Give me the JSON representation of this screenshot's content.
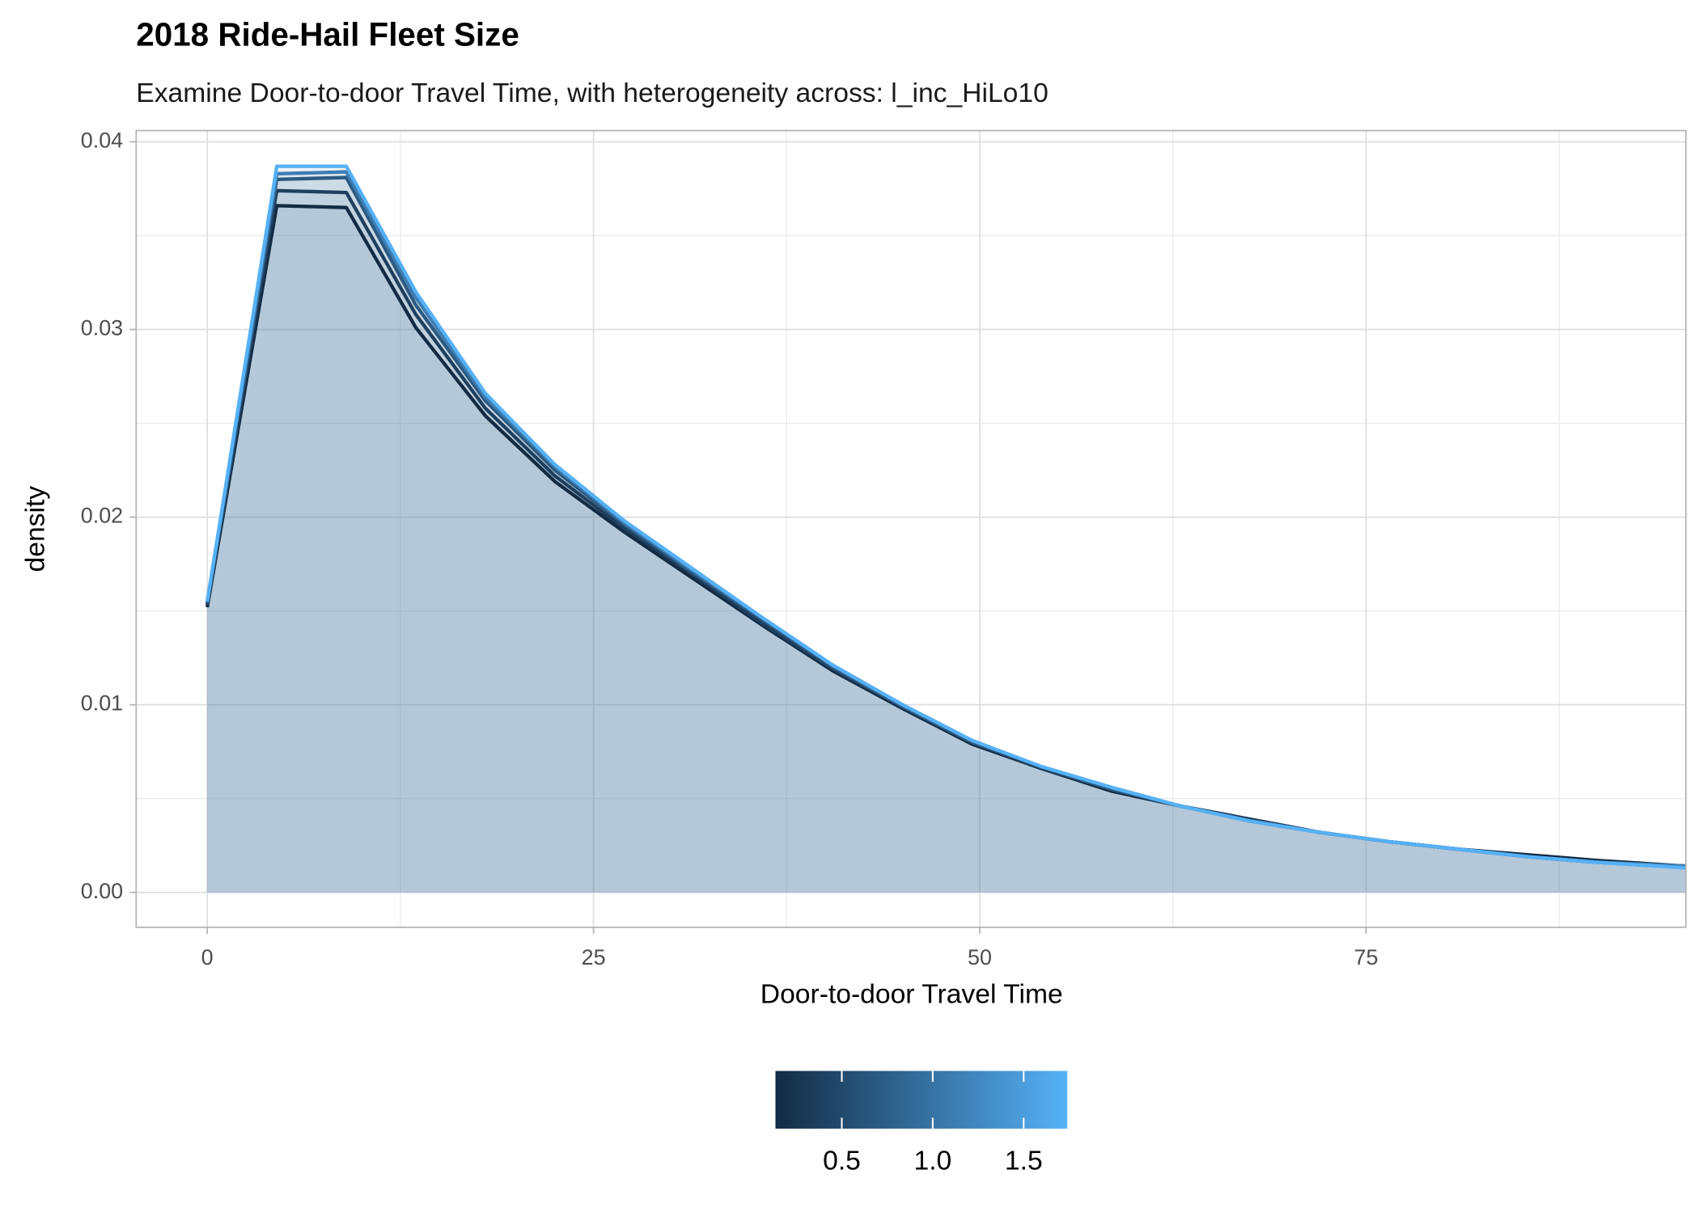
{
  "chart_data": {
    "type": "area_line",
    "title": "2018 Ride-Hail Fleet Size",
    "subtitle": "Examine Door-to-door Travel Time, with heterogeneity across: l_inc_HiLo10",
    "x_label": "Door-to-door Travel Time",
    "y_label": "density",
    "x": [
      0,
      4.5,
      9,
      13.5,
      18,
      22.5,
      27,
      31.5,
      36,
      40.5,
      45,
      49.5,
      54,
      58.5,
      63,
      67.5,
      72,
      76.5,
      81,
      85.5,
      90,
      95.7
    ],
    "series": [
      {
        "color": "#132b43",
        "values": [
          0.0152,
          0.0366,
          0.0365,
          0.0301,
          0.0254,
          0.0219,
          0.0192,
          0.0167,
          0.0142,
          0.0118,
          0.0098,
          0.0079,
          0.0066,
          0.0054,
          0.0046,
          0.0039,
          0.0032,
          0.0027,
          0.0023,
          0.002,
          0.0017,
          0.0014
        ]
      },
      {
        "color": "#1f3f5e",
        "values": [
          0.0153,
          0.0374,
          0.0373,
          0.0308,
          0.0258,
          0.0222,
          0.0194,
          0.0169,
          0.0143,
          0.0119,
          0.0099,
          0.008,
          0.0066,
          0.0055,
          0.0046,
          0.0039,
          0.0032,
          0.0027,
          0.0023,
          0.0019,
          0.0016,
          0.0014
        ]
      },
      {
        "color": "#2c5a82",
        "values": [
          0.0154,
          0.038,
          0.0381,
          0.0313,
          0.0262,
          0.0225,
          0.0196,
          0.017,
          0.0145,
          0.012,
          0.0099,
          0.008,
          0.0067,
          0.0055,
          0.0046,
          0.0038,
          0.0032,
          0.0027,
          0.0023,
          0.0019,
          0.0016,
          0.0014
        ]
      },
      {
        "color": "#3d7db2",
        "values": [
          0.0155,
          0.0383,
          0.0384,
          0.0317,
          0.0264,
          0.0227,
          0.0197,
          0.0171,
          0.0146,
          0.0121,
          0.01,
          0.0081,
          0.0067,
          0.0056,
          0.0046,
          0.0038,
          0.0032,
          0.0027,
          0.0023,
          0.0019,
          0.0016,
          0.0014
        ]
      },
      {
        "color": "#56b1f7",
        "values": [
          0.0155,
          0.0387,
          0.0387,
          0.032,
          0.0266,
          0.0228,
          0.0198,
          0.0172,
          0.0146,
          0.0121,
          0.01,
          0.0081,
          0.0067,
          0.0056,
          0.0046,
          0.0038,
          0.0032,
          0.0027,
          0.0023,
          0.0019,
          0.0016,
          0.0013
        ]
      }
    ],
    "fill": "#4f7fab",
    "xlim": [
      -4.6,
      95.7
    ],
    "ylim": [
      -0.00186,
      0.0406
    ],
    "xticks": [
      0,
      25,
      50,
      75
    ],
    "yticks": [
      {
        "value": 0,
        "label": "0.00"
      },
      {
        "value": 0.01,
        "label": "0.01"
      },
      {
        "value": 0.02,
        "label": "0.02"
      },
      {
        "value": 0.03,
        "label": "0.03"
      },
      {
        "value": 0.04,
        "label": "0.04"
      }
    ],
    "grid": true,
    "minor_grid": true,
    "legend": {
      "position": "bottom",
      "lim": [
        0.135,
        1.74
      ],
      "ticks": [
        0.5,
        {
          "value": 1.0,
          "label": "1.0"
        },
        1.5
      ],
      "colors": [
        "#132b43",
        "#56b1f7"
      ]
    }
  }
}
